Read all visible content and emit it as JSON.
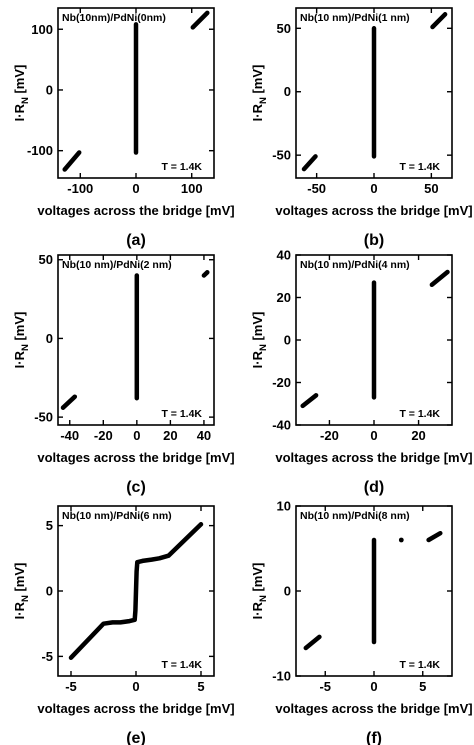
{
  "chart_data": [
    {
      "type": "line",
      "panel_label": "(a)",
      "title": "Nb(10nm)/PdNi(0nm)",
      "annotation": "T = 1.4K",
      "xlabel": "voltages across the bridge [mV]",
      "ylabel": {
        "main": "I·R",
        "sub": "N",
        "unit": " [mV]"
      },
      "xlim": [
        -140,
        140
      ],
      "ylim": [
        -145,
        135
      ],
      "xticks": [
        -100,
        0,
        100
      ],
      "yticks": [
        -100,
        0,
        100
      ],
      "xtick_labels": [
        "-100",
        "0",
        "100"
      ],
      "ytick_labels": [
        "-100",
        "0",
        "100"
      ],
      "series": [
        {
          "x": [
            0,
            0
          ],
          "y": [
            -103,
            108
          ]
        },
        {
          "x": [
            -128,
            -102
          ],
          "y": [
            -131,
            -103
          ]
        },
        {
          "x": [
            102,
            128
          ],
          "y": [
            103,
            127
          ]
        }
      ]
    },
    {
      "type": "line",
      "panel_label": "(b)",
      "title": "Nb(10 nm)/PdNi(1 nm)",
      "annotation": "T = 1.4K",
      "xlabel": "voltages across the bridge [mV]",
      "ylabel": {
        "main": "I·R",
        "sub": "N",
        "unit": " [mV]"
      },
      "xlim": [
        -68,
        68
      ],
      "ylim": [
        -68,
        66
      ],
      "xticks": [
        -50,
        0,
        50
      ],
      "yticks": [
        -50,
        0,
        50
      ],
      "xtick_labels": [
        "-50",
        "0",
        "50"
      ],
      "ytick_labels": [
        "-50",
        "0",
        "50"
      ],
      "series": [
        {
          "x": [
            0,
            0
          ],
          "y": [
            -51,
            50
          ]
        },
        {
          "x": [
            -61,
            -51
          ],
          "y": [
            -61,
            -51
          ]
        },
        {
          "x": [
            51,
            62
          ],
          "y": [
            51,
            61
          ]
        }
      ]
    },
    {
      "type": "line",
      "panel_label": "(c)",
      "title": "Nb(10 nm)/PdNi(2 nm)",
      "annotation": "T = 1.4K",
      "xlabel": "voltages across the bridge [mV]",
      "ylabel": {
        "main": "I·R",
        "sub": "N",
        "unit": " [mV]"
      },
      "xlim": [
        -47,
        46
      ],
      "ylim": [
        -55,
        53
      ],
      "xticks": [
        -40,
        -20,
        0,
        20,
        40
      ],
      "yticks": [
        -50,
        0,
        50
      ],
      "xtick_labels": [
        "-40",
        "-20",
        "0",
        "20",
        "40"
      ],
      "ytick_labels": [
        "-50",
        "0",
        "50"
      ],
      "series": [
        {
          "x": [
            0,
            0
          ],
          "y": [
            -38,
            40
          ]
        },
        {
          "x": [
            -44,
            -37
          ],
          "y": [
            -44,
            -37
          ]
        },
        {
          "x": [
            40,
            42
          ],
          "y": [
            40,
            42
          ]
        }
      ]
    },
    {
      "type": "line",
      "panel_label": "(d)",
      "title": "Nb(10 nm)/PdNi(4 nm)",
      "annotation": "T = 1.4K",
      "xlabel": "voltages across the bridge [mV]",
      "ylabel": {
        "main": "I·R",
        "sub": "N",
        "unit": " [mV]"
      },
      "xlim": [
        -35,
        35
      ],
      "ylim": [
        -40,
        40
      ],
      "xticks": [
        -20,
        0,
        20
      ],
      "yticks": [
        -40,
        -20,
        0,
        20,
        40
      ],
      "xtick_labels": [
        "-20",
        "0",
        "20"
      ],
      "ytick_labels": [
        "-40",
        "-20",
        "0",
        "20",
        "40"
      ],
      "series": [
        {
          "x": [
            0,
            0
          ],
          "y": [
            -27,
            27
          ]
        },
        {
          "x": [
            -32,
            -26
          ],
          "y": [
            -31,
            -26
          ]
        },
        {
          "x": [
            26,
            33
          ],
          "y": [
            26,
            32
          ]
        }
      ]
    },
    {
      "type": "line",
      "panel_label": "(e)",
      "title": "Nb(10 nm)/PdNi(6 nm)",
      "annotation": "T = 1.4K",
      "xlabel": "voltages across the bridge [mV]",
      "ylabel": {
        "main": "I·R",
        "sub": "N",
        "unit": " [mV]"
      },
      "xlim": [
        -6,
        6
      ],
      "ylim": [
        -6.5,
        6.5
      ],
      "xticks": [
        -5,
        0,
        5
      ],
      "yticks": [
        -5,
        0,
        5
      ],
      "xtick_labels": [
        "-5",
        "0",
        "5"
      ],
      "ytick_labels": [
        "-5",
        "0",
        "5"
      ],
      "series": [
        {
          "x": [
            -5,
            -2.5,
            -1.8,
            -1.2,
            -0.5,
            -0.1,
            -0.05,
            0,
            0.05,
            0.1,
            0.5,
            1.2,
            1.8,
            2.5,
            5
          ],
          "y": [
            -5.1,
            -2.5,
            -2.4,
            -2.4,
            -2.3,
            -2.2,
            -1.5,
            0,
            1.5,
            2.2,
            2.3,
            2.4,
            2.5,
            2.7,
            5.1
          ]
        }
      ]
    },
    {
      "type": "line",
      "panel_label": "(f)",
      "title": "Nb(10 nm)/PdNi(8 nm)",
      "annotation": "T = 1.4K",
      "xlabel": "voltages across the bridge [mV]",
      "ylabel": {
        "main": "I·R",
        "sub": "N",
        "unit": " [mV]"
      },
      "xlim": [
        -8,
        8
      ],
      "ylim": [
        -10,
        10
      ],
      "xticks": [
        -5,
        0,
        5
      ],
      "yticks": [
        -10,
        0,
        10
      ],
      "xtick_labels": [
        "-5",
        "0",
        "5"
      ],
      "ytick_labels": [
        "-10",
        "0",
        "10"
      ],
      "series": [
        {
          "x": [
            0,
            0
          ],
          "y": [
            -6,
            6
          ]
        },
        {
          "x": [
            -7,
            -5.6
          ],
          "y": [
            -6.7,
            -5.4
          ]
        },
        {
          "x": [
            5.6,
            6.8
          ],
          "y": [
            6.0,
            6.8
          ]
        },
        {
          "x": [
            2.8
          ],
          "y": [
            6.0
          ]
        }
      ]
    }
  ]
}
